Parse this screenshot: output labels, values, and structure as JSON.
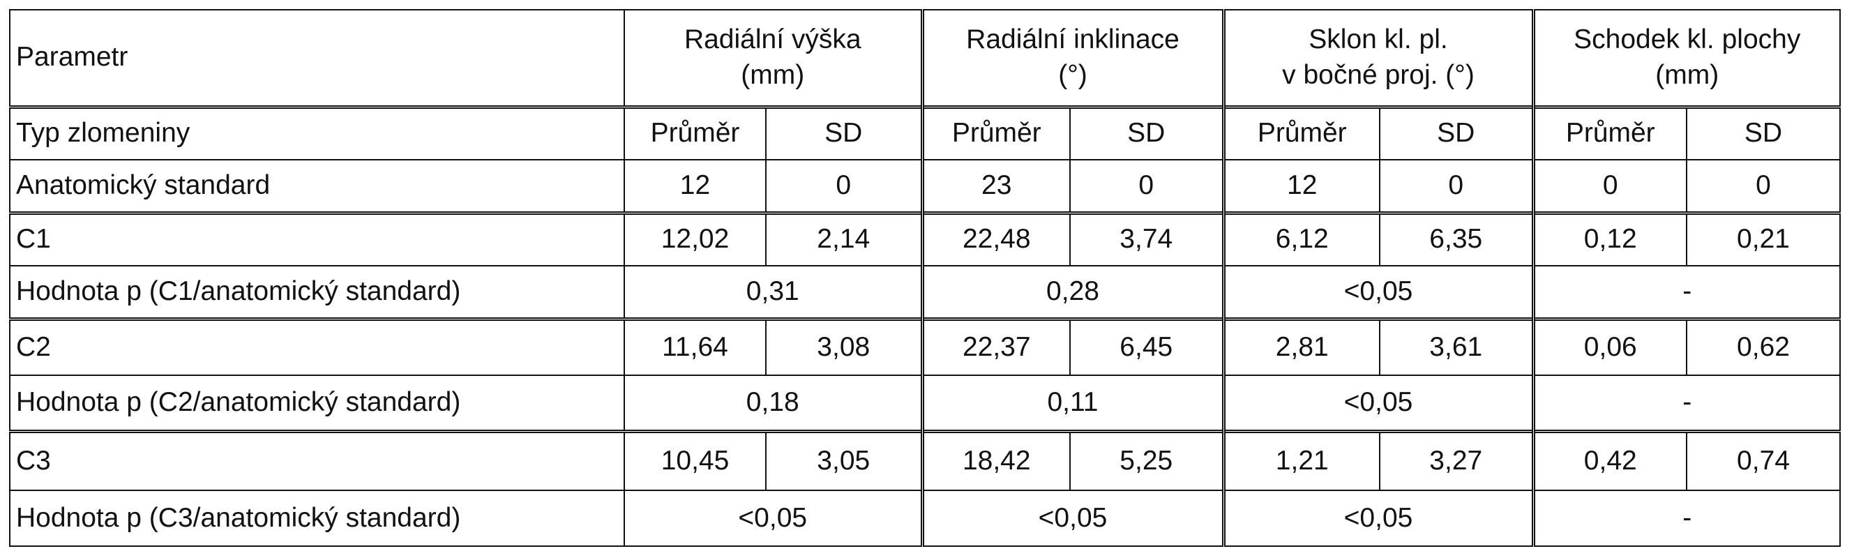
{
  "table": {
    "header": {
      "parameter": "Parametr",
      "groups": [
        [
          "Radiální výška",
          "(mm)"
        ],
        [
          "Radiální inklinace",
          "(°)"
        ],
        [
          "Sklon kl. pl.",
          "v bočné proj. (°)"
        ],
        [
          "Schodek kl. plochy",
          "(mm)"
        ]
      ],
      "type_label": "Typ zlomeniny",
      "subheaders": [
        "Průměr",
        "SD",
        "Průměr",
        "SD",
        "Průměr",
        "SD",
        "Průměr",
        "SD"
      ]
    },
    "rows": [
      {
        "label": "Anatomický standard",
        "cells": [
          "12",
          "0",
          "23",
          "0",
          "12",
          "0",
          "0",
          "0"
        ]
      },
      {
        "label": "C1",
        "cells": [
          "12,02",
          "2,14",
          "22,48",
          "3,74",
          "6,12",
          "6,35",
          "0,12",
          "0,21"
        ]
      },
      {
        "label": "Hodnota p (C1/anatomický standard)",
        "cells": [
          "0,31",
          "0,28",
          "<0,05",
          "-"
        ]
      },
      {
        "label": "C2",
        "cells": [
          "11,64",
          "3,08",
          "22,37",
          "6,45",
          "2,81",
          "3,61",
          "0,06",
          "0,62"
        ]
      },
      {
        "label": "Hodnota p (C2/anatomický standard)",
        "cells": [
          "0,18",
          "0,11",
          "<0,05",
          "-"
        ]
      },
      {
        "label": "C3",
        "cells": [
          "10,45",
          "3,05",
          "18,42",
          "5,25",
          "1,21",
          "3,27",
          "0,42",
          "0,74"
        ]
      },
      {
        "label": "Hodnota p (C3/anatomický standard)",
        "cells": [
          "<0,05",
          "<0,05",
          "<0,05",
          "-"
        ]
      }
    ]
  }
}
